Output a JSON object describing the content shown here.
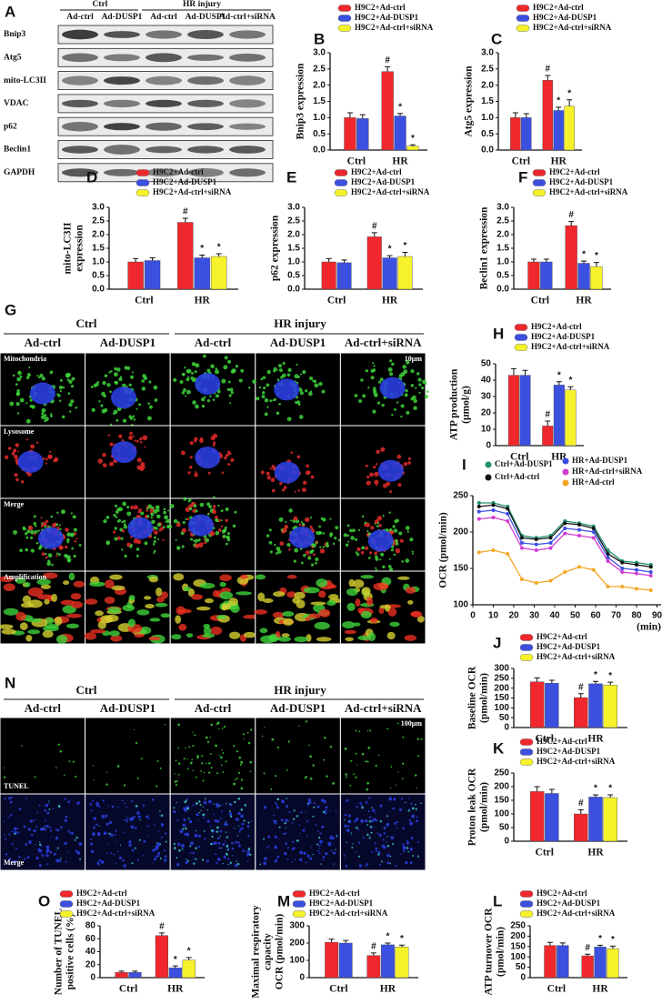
{
  "blot": {
    "panel": "A",
    "groups": [
      "Ctrl",
      "HR injury"
    ],
    "lanes": [
      "Ad-ctrl",
      "Ad-DUSP1",
      "Ad-ctrl",
      "Ad-DUSP1",
      "Ad-ctrl+siRNA"
    ],
    "proteins": [
      "Bnip3",
      "Atg5",
      "mito-LC3II",
      "VDAC",
      "p62",
      "Beclin1",
      "GAPDH"
    ]
  },
  "imaging": {
    "panel": "G",
    "groups": [
      "Ctrl",
      "HR injury"
    ],
    "columns": [
      "Ad-ctrl",
      "Ad-DUSP1",
      "Ad-ctrl",
      "Ad-DUSP1",
      "Ad-ctrl+siRNA"
    ],
    "rows": [
      "Mitochondria",
      "Lysosome",
      "Merge",
      "Amplification"
    ],
    "scale": "10μm"
  },
  "tunel": {
    "panel": "N",
    "groups": [
      "Ctrl",
      "HR injury"
    ],
    "columns": [
      "Ad-ctrl",
      "Ad-DUSP1",
      "Ad-ctrl",
      "Ad-DUSP1",
      "Ad-ctrl+siRNA"
    ],
    "rows": [
      "TUNEL",
      "Merge"
    ],
    "scale": "100μm"
  },
  "chart_data": [
    {
      "type": "bar",
      "panel": "B",
      "ylabel": [
        "Bnip3 expression"
      ],
      "categories": [
        "Ctrl",
        "HR"
      ],
      "ylim": [
        0,
        3
      ],
      "yticks": [
        {
          "value": 0,
          "label": "0.0"
        },
        {
          "value": 0.5,
          "label": "0.5"
        },
        {
          "value": 1,
          "label": "1.0"
        },
        {
          "value": 1.5,
          "label": "1.5"
        },
        {
          "value": 2,
          "label": "2.0"
        },
        {
          "value": 2.5,
          "label": "2.5"
        },
        {
          "value": 3,
          "label": "3.0"
        }
      ],
      "series": [
        {
          "name": "H9C2+Ad-ctrl",
          "color": "#f0282d",
          "values": [
            1.0,
            2.42
          ],
          "errors": [
            0.15,
            0.15
          ],
          "annotations": [
            null,
            "#"
          ]
        },
        {
          "name": "H9C2+Ad-DUSP1",
          "color": "#3c50e0",
          "values": [
            0.97,
            1.05
          ],
          "errors": [
            0.12,
            0.08
          ],
          "annotations": [
            null,
            "*"
          ]
        },
        {
          "name": "H9C2+Ad-ctrl+siRNA",
          "color": "#f6f22a",
          "values": [
            null,
            0.12
          ],
          "errors": [
            null,
            0.04
          ],
          "annotations": [
            null,
            "*"
          ]
        }
      ]
    },
    {
      "type": "bar",
      "panel": "C",
      "ylabel": [
        "Atg5 expression"
      ],
      "categories": [
        "Ctrl",
        "HR"
      ],
      "ylim": [
        0,
        3
      ],
      "yticks": [
        {
          "value": 0,
          "label": "0.0"
        },
        {
          "value": 0.5,
          "label": "0.5"
        },
        {
          "value": 1,
          "label": "1.0"
        },
        {
          "value": 1.5,
          "label": "1.5"
        },
        {
          "value": 2,
          "label": "2.0"
        },
        {
          "value": 2.5,
          "label": "2.5"
        },
        {
          "value": 3,
          "label": "3.0"
        }
      ],
      "series": [
        {
          "name": "H9C2+Ad-ctrl",
          "color": "#f0282d",
          "values": [
            1.0,
            2.15
          ],
          "errors": [
            0.15,
            0.15
          ],
          "annotations": [
            null,
            "#"
          ]
        },
        {
          "name": "H9C2+Ad-DUSP1",
          "color": "#3c50e0",
          "values": [
            1.0,
            1.22
          ],
          "errors": [
            0.12,
            0.1
          ],
          "annotations": [
            null,
            "*"
          ]
        },
        {
          "name": "H9C2+Ad-ctrl+siRNA",
          "color": "#f6f22a",
          "values": [
            null,
            1.35
          ],
          "errors": [
            null,
            0.2
          ],
          "annotations": [
            null,
            "*"
          ]
        }
      ]
    },
    {
      "type": "bar",
      "panel": "D",
      "ylabel": [
        "mito-LC3II",
        "expression"
      ],
      "categories": [
        "Ctrl",
        "HR"
      ],
      "ylim": [
        0,
        3
      ],
      "yticks": [
        {
          "value": 0,
          "label": "0.0"
        },
        {
          "value": 0.5,
          "label": "0.5"
        },
        {
          "value": 1,
          "label": "1.0"
        },
        {
          "value": 1.5,
          "label": "1.5"
        },
        {
          "value": 2,
          "label": "2.0"
        },
        {
          "value": 2.5,
          "label": "2.5"
        },
        {
          "value": 3,
          "label": "3.0"
        }
      ],
      "series": [
        {
          "name": "H9C2+Ad-ctrl",
          "color": "#f0282d",
          "values": [
            1.0,
            2.45
          ],
          "errors": [
            0.12,
            0.15
          ],
          "annotations": [
            null,
            "#"
          ]
        },
        {
          "name": "H9C2+Ad-DUSP1",
          "color": "#3c50e0",
          "values": [
            1.05,
            1.15
          ],
          "errors": [
            0.1,
            0.1
          ],
          "annotations": [
            null,
            "*"
          ]
        },
        {
          "name": "H9C2+Ad-ctrl+siRNA",
          "color": "#f6f22a",
          "values": [
            null,
            1.2
          ],
          "errors": [
            null,
            0.1
          ],
          "annotations": [
            null,
            "*"
          ]
        }
      ]
    },
    {
      "type": "bar",
      "panel": "E",
      "ylabel": [
        "p62 expression"
      ],
      "categories": [
        "Ctrl",
        "HR"
      ],
      "ylim": [
        0,
        3
      ],
      "yticks": [
        {
          "value": 0,
          "label": "0.0"
        },
        {
          "value": 0.5,
          "label": "0.5"
        },
        {
          "value": 1,
          "label": "1.0"
        },
        {
          "value": 1.5,
          "label": "1.5"
        },
        {
          "value": 2,
          "label": "2.0"
        },
        {
          "value": 2.5,
          "label": "2.5"
        },
        {
          "value": 3,
          "label": "3.0"
        }
      ],
      "series": [
        {
          "name": "H9C2+Ad-ctrl",
          "color": "#f0282d",
          "values": [
            1.0,
            1.92
          ],
          "errors": [
            0.12,
            0.15
          ],
          "annotations": [
            null,
            "#"
          ]
        },
        {
          "name": "H9C2+Ad-DUSP1",
          "color": "#3c50e0",
          "values": [
            0.97,
            1.15
          ],
          "errors": [
            0.1,
            0.08
          ],
          "annotations": [
            null,
            "*"
          ]
        },
        {
          "name": "H9C2+Ad-ctrl+siRNA",
          "color": "#f6f22a",
          "values": [
            null,
            1.2
          ],
          "errors": [
            null,
            0.15
          ],
          "annotations": [
            null,
            "*"
          ]
        }
      ]
    },
    {
      "type": "bar",
      "panel": "F",
      "ylabel": [
        "Beclin1 expression"
      ],
      "categories": [
        "Ctrl",
        "HR"
      ],
      "ylim": [
        0,
        3
      ],
      "yticks": [
        {
          "value": 0,
          "label": "0.0"
        },
        {
          "value": 0.5,
          "label": "0.5"
        },
        {
          "value": 1,
          "label": "1.0"
        },
        {
          "value": 1.5,
          "label": "1.5"
        },
        {
          "value": 2,
          "label": "2.0"
        },
        {
          "value": 2.5,
          "label": "2.5"
        },
        {
          "value": 3,
          "label": "3.0"
        }
      ],
      "series": [
        {
          "name": "H9C2+Ad-ctrl",
          "color": "#f0282d",
          "values": [
            1.0,
            2.33
          ],
          "errors": [
            0.1,
            0.15
          ],
          "annotations": [
            null,
            "#"
          ]
        },
        {
          "name": "H9C2+Ad-DUSP1",
          "color": "#3c50e0",
          "values": [
            1.0,
            0.95
          ],
          "errors": [
            0.1,
            0.08
          ],
          "annotations": [
            null,
            "*"
          ]
        },
        {
          "name": "H9C2+Ad-ctrl+siRNA",
          "color": "#f6f22a",
          "values": [
            null,
            0.83
          ],
          "errors": [
            null,
            0.15
          ],
          "annotations": [
            null,
            "*"
          ]
        }
      ]
    },
    {
      "type": "bar",
      "panel": "H",
      "ylabel": [
        "ATP production",
        "(μmol/g)"
      ],
      "categories": [
        "Ctrl",
        "HR"
      ],
      "ylim": [
        0,
        50
      ],
      "yticks": [
        0,
        10,
        20,
        30,
        40,
        50
      ],
      "series": [
        {
          "name": "H9C2+Ad-ctrl",
          "color": "#f0282d",
          "values": [
            43,
            12
          ],
          "errors": [
            4,
            3
          ],
          "annotations": [
            null,
            "#"
          ]
        },
        {
          "name": "H9C2+Ad-DUSP1",
          "color": "#3c50e0",
          "values": [
            43,
            37
          ],
          "errors": [
            3,
            2
          ],
          "annotations": [
            null,
            "*"
          ]
        },
        {
          "name": "H9C2+Ad-ctrl+siRNA",
          "color": "#f6f22a",
          "values": [
            null,
            34
          ],
          "errors": [
            null,
            2
          ],
          "annotations": [
            null,
            "*"
          ]
        }
      ]
    },
    {
      "type": "line",
      "panel": "I",
      "ylabel": [
        "OCR (pmol/min)"
      ],
      "xlabel": "(min)",
      "x": [
        3,
        10,
        17,
        24,
        31,
        38,
        45,
        52,
        59,
        66,
        73,
        80,
        87
      ],
      "xlim": [
        0,
        92
      ],
      "xticks": [
        0,
        10,
        20,
        30,
        40,
        50,
        60,
        70,
        80,
        90
      ],
      "ylim": [
        100,
        250
      ],
      "yticks": [
        100,
        150,
        200,
        250
      ],
      "series": [
        {
          "name": "Ctrl+Ad-DUSP1",
          "color": "#1f8f6f",
          "values": [
            240,
            240,
            235,
            195,
            192,
            195,
            215,
            212,
            208,
            175,
            160,
            158,
            155
          ]
        },
        {
          "name": "Ctrl+Ad-ctrl",
          "color": "#111111",
          "values": [
            235,
            237,
            232,
            192,
            190,
            192,
            212,
            210,
            205,
            170,
            158,
            155,
            152
          ]
        },
        {
          "name": "HR+Ad-DUSP1",
          "color": "#3c50e0",
          "values": [
            228,
            230,
            225,
            185,
            183,
            185,
            205,
            203,
            200,
            165,
            150,
            148,
            145
          ]
        },
        {
          "name": "HR+Ad-ctrl+siRNA",
          "color": "#d23cd2",
          "values": [
            218,
            220,
            215,
            178,
            175,
            178,
            198,
            195,
            192,
            160,
            145,
            143,
            140
          ]
        },
        {
          "name": "HR+Ad-ctrl",
          "color": "#f5a623",
          "values": [
            172,
            175,
            170,
            135,
            130,
            133,
            145,
            152,
            148,
            125,
            125,
            122,
            120
          ]
        }
      ]
    },
    {
      "type": "bar",
      "panel": "J",
      "ylabel": [
        "Baseline OCR",
        "(pmol/min)"
      ],
      "categories": [
        "Ctrl",
        "HR"
      ],
      "ylim": [
        0,
        300
      ],
      "yticks": [
        0,
        50,
        100,
        150,
        200,
        250,
        300
      ],
      "series": [
        {
          "name": "H9C2+Ad-ctrl",
          "color": "#f0282d",
          "values": [
            232,
            152
          ],
          "errors": [
            20,
            20
          ],
          "annotations": [
            null,
            "#"
          ]
        },
        {
          "name": "H9C2+Ad-DUSP1",
          "color": "#3c50e0",
          "values": [
            225,
            222
          ],
          "errors": [
            15,
            12
          ],
          "annotations": [
            null,
            "*"
          ]
        },
        {
          "name": "H9C2+Ad-ctrl+siRNA",
          "color": "#f6f22a",
          "values": [
            null,
            215
          ],
          "errors": [
            null,
            15
          ],
          "annotations": [
            null,
            "*"
          ]
        }
      ]
    },
    {
      "type": "bar",
      "panel": "K",
      "ylabel": [
        "Proton leak OCR",
        "(pmol/min)"
      ],
      "categories": [
        "Ctrl",
        "HR"
      ],
      "ylim": [
        0,
        250
      ],
      "yticks": [
        0,
        50,
        100,
        150,
        200,
        250
      ],
      "series": [
        {
          "name": "H9C2+Ad-ctrl",
          "color": "#f0282d",
          "values": [
            182,
            100
          ],
          "errors": [
            18,
            15
          ],
          "annotations": [
            null,
            "#"
          ]
        },
        {
          "name": "H9C2+Ad-DUSP1",
          "color": "#3c50e0",
          "values": [
            175,
            162
          ],
          "errors": [
            15,
            8
          ],
          "annotations": [
            null,
            "*"
          ]
        },
        {
          "name": "H9C2+Ad-ctrl+siRNA",
          "color": "#f6f22a",
          "values": [
            null,
            160
          ],
          "errors": [
            null,
            10
          ],
          "annotations": [
            null,
            "*"
          ]
        }
      ]
    },
    {
      "type": "bar",
      "panel": "O",
      "ylabel": [
        "Number of TUNEL",
        "positive cells (%)"
      ],
      "categories": [
        "Ctrl",
        "HR"
      ],
      "ylim": [
        0,
        80
      ],
      "yticks": [
        0,
        20,
        40,
        60,
        80
      ],
      "series": [
        {
          "name": "H9C2+Ad-ctrl",
          "color": "#f0282d",
          "values": [
            8,
            65
          ],
          "errors": [
            2,
            4
          ],
          "annotations": [
            null,
            "#"
          ]
        },
        {
          "name": "H9C2+Ad-DUSP1",
          "color": "#3c50e0",
          "values": [
            8,
            15
          ],
          "errors": [
            2,
            3
          ],
          "annotations": [
            null,
            "*"
          ]
        },
        {
          "name": "H9C2+Ad-ctrl+siRNA",
          "color": "#f6f22a",
          "values": [
            null,
            27
          ],
          "errors": [
            null,
            4
          ],
          "annotations": [
            null,
            "*"
          ]
        }
      ]
    },
    {
      "type": "bar",
      "panel": "M",
      "ylabel": [
        "Maximal respiratory",
        "capacity",
        "OCR (pmol/min)"
      ],
      "categories": [
        "Ctrl",
        "HR"
      ],
      "ylim": [
        0,
        300
      ],
      "yticks": [
        0,
        100,
        200,
        300
      ],
      "series": [
        {
          "name": "H9C2+Ad-ctrl",
          "color": "#f0282d",
          "values": [
            205,
            128
          ],
          "errors": [
            18,
            15
          ],
          "annotations": [
            null,
            "#"
          ]
        },
        {
          "name": "H9C2+Ad-DUSP1",
          "color": "#3c50e0",
          "values": [
            200,
            190
          ],
          "errors": [
            15,
            10
          ],
          "annotations": [
            null,
            "*"
          ]
        },
        {
          "name": "H9C2+Ad-ctrl+siRNA",
          "color": "#f6f22a",
          "values": [
            null,
            178
          ],
          "errors": [
            null,
            10
          ],
          "annotations": [
            null,
            "*"
          ]
        }
      ]
    },
    {
      "type": "bar",
      "panel": "L",
      "ylabel": [
        "ATP turnover OCR",
        "(pmol/min)"
      ],
      "categories": [
        "Ctrl",
        "HR"
      ],
      "ylim": [
        0,
        250
      ],
      "yticks": [
        0,
        50,
        100,
        150,
        200,
        250
      ],
      "series": [
        {
          "name": "H9C2+Ad-ctrl",
          "color": "#f0282d",
          "values": [
            155,
            105
          ],
          "errors": [
            15,
            8
          ],
          "annotations": [
            null,
            "#"
          ]
        },
        {
          "name": "H9C2+Ad-DUSP1",
          "color": "#3c50e0",
          "values": [
            155,
            148
          ],
          "errors": [
            12,
            8
          ],
          "annotations": [
            null,
            "*"
          ]
        },
        {
          "name": "H9C2+Ad-ctrl+siRNA",
          "color": "#f6f22a",
          "values": [
            null,
            140
          ],
          "errors": [
            null,
            12
          ],
          "annotations": [
            null,
            "*"
          ]
        }
      ]
    }
  ]
}
